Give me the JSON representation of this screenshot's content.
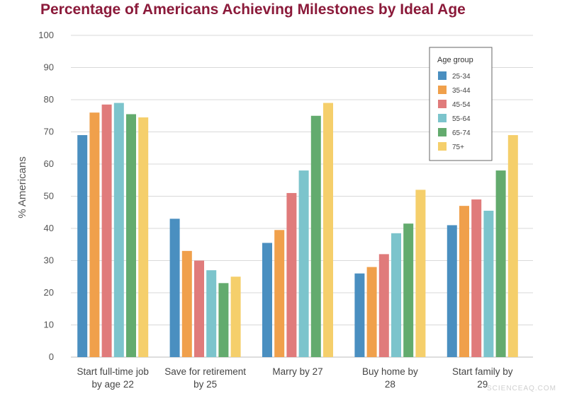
{
  "chart_data": {
    "type": "bar",
    "title": "Percentage of Americans Achieving Milestones by Ideal Age",
    "ylabel": "% Americans",
    "xlabel": "",
    "ylim": [
      0,
      100
    ],
    "yticks": [
      0,
      10,
      20,
      30,
      40,
      50,
      60,
      70,
      80,
      90,
      100
    ],
    "grid": true,
    "categories": [
      [
        "Start full-time job",
        "by age 22"
      ],
      [
        "Save for retirement",
        "by 25"
      ],
      [
        "Marry by 27"
      ],
      [
        "Buy home by",
        "28"
      ],
      [
        "Start family by",
        "29"
      ]
    ],
    "legend": {
      "title": "Age group",
      "placement": "top-right"
    },
    "series": [
      {
        "name": "25-34",
        "color": "#4a8fc0",
        "values": [
          69,
          43,
          35.5,
          26,
          41
        ]
      },
      {
        "name": "35-44",
        "color": "#f0a04b",
        "values": [
          76,
          33,
          39.5,
          28,
          47
        ]
      },
      {
        "name": "45-54",
        "color": "#e07b7b",
        "values": [
          78.5,
          30,
          51,
          32,
          49
        ]
      },
      {
        "name": "55-64",
        "color": "#7cc4cc",
        "values": [
          79,
          27,
          58,
          38.5,
          45.5
        ]
      },
      {
        "name": "65-74",
        "color": "#63ab6e",
        "values": [
          75.5,
          23,
          75,
          41.5,
          58
        ]
      },
      {
        "name": "75+",
        "color": "#f5cf6b",
        "values": [
          74.5,
          25,
          79,
          52,
          69
        ]
      }
    ]
  },
  "watermark": "SCIENCEAQ.COM"
}
